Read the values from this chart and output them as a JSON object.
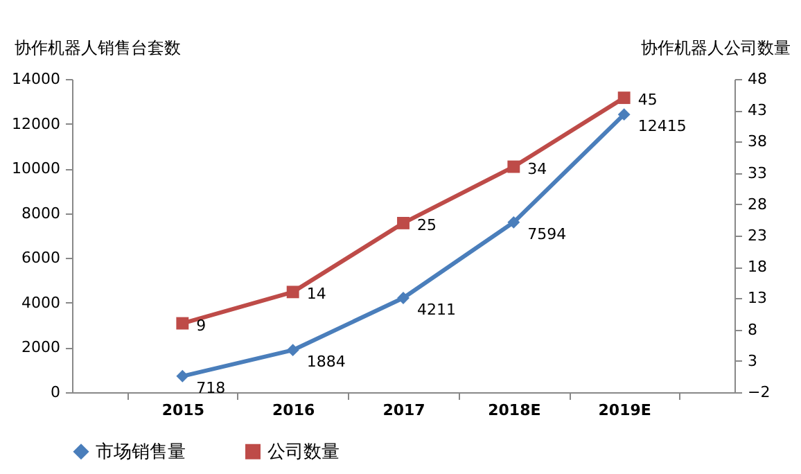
{
  "chart_data": {
    "type": "line",
    "ylabel": "协作机器人销售台套数",
    "y2label": "协作机器人公司数量",
    "categories": [
      "2015",
      "2016",
      "2017",
      "2018E",
      "2019E"
    ],
    "series": [
      {
        "name": "市场销售量",
        "color": "#4a7ebb",
        "marker": "diamond",
        "values": [
          718,
          1884,
          4211,
          7594,
          12415
        ]
      },
      {
        "name": "公司数量",
        "color": "#be4b48",
        "marker": "square",
        "axis": "y2",
        "values": [
          9,
          14,
          25,
          34,
          45
        ]
      }
    ],
    "ylim": [
      0,
      14000
    ],
    "yticks": [
      0,
      2000,
      4000,
      6000,
      8000,
      10000,
      12000,
      14000
    ],
    "y2lim": [
      -2,
      48
    ],
    "y2ticks": [
      -2,
      3,
      8,
      13,
      18,
      23,
      28,
      33,
      38,
      43,
      48
    ],
    "data_labels": true,
    "grid": false,
    "legend": "bottom"
  }
}
